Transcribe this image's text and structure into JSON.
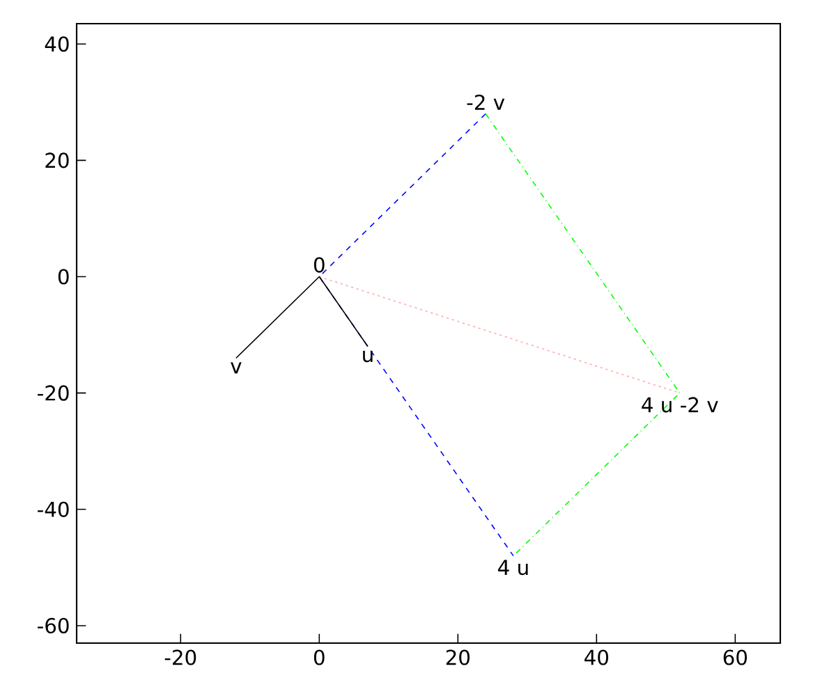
{
  "chart_data": {
    "type": "line",
    "series": [
      {
        "x": [
          24,
          0,
          28
        ],
        "values": [
          28,
          0,
          -48
        ],
        "color": "#0000ff",
        "line_style": "dashed"
      },
      {
        "x": [
          24,
          52,
          28
        ],
        "values": [
          28,
          -20,
          -48
        ],
        "color": "#00ff00",
        "line_style": "dashdot"
      },
      {
        "x": [
          0,
          52
        ],
        "values": [
          0,
          -20
        ],
        "color": "#ffaaaa",
        "line_style": "dotted"
      },
      {
        "x": [
          -12,
          0,
          7
        ],
        "values": [
          -14,
          0,
          -12
        ],
        "color": "#000000",
        "line_style": "solid"
      }
    ],
    "annotations": [
      {
        "text": "0",
        "x": 0,
        "y": 0
      },
      {
        "text": "u",
        "x": 7,
        "y": -12
      },
      {
        "text": "v",
        "x": -12,
        "y": -14
      },
      {
        "text": "-2 v",
        "x": 24,
        "y": 28
      },
      {
        "text": "4 u",
        "x": 28,
        "y": -48
      },
      {
        "text": "4 u -2 v",
        "x": 52,
        "y": -20
      }
    ],
    "xlim": [
      -35,
      66.5
    ],
    "ylim": [
      -63,
      43.5
    ],
    "xticks": [
      -20,
      0,
      20,
      40,
      60
    ],
    "yticks": [
      -60,
      -40,
      -20,
      0,
      20,
      40
    ],
    "grid": false,
    "marker": "none"
  }
}
